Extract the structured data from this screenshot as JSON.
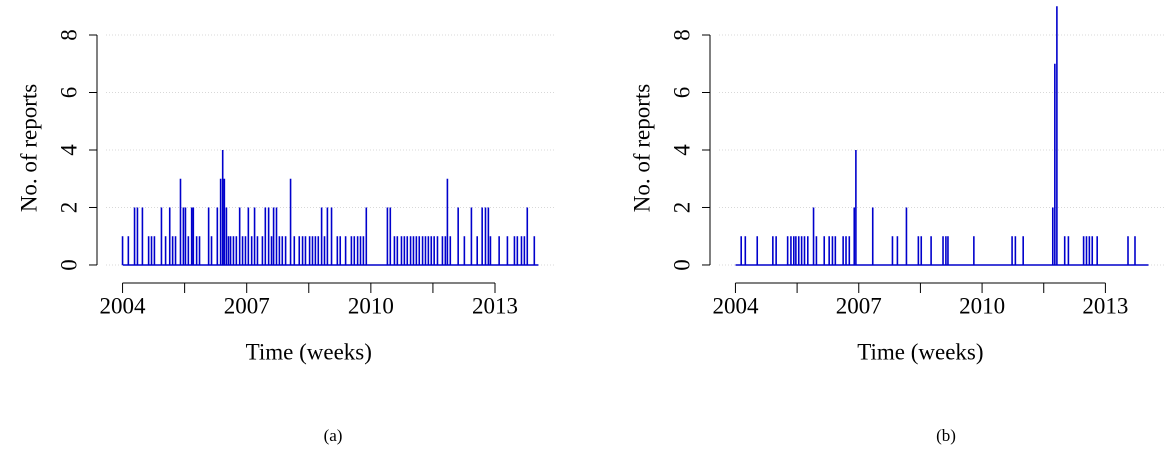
{
  "chart_data": [
    {
      "type": "spike",
      "caption": "(a)",
      "xlabel": "Time (weeks)",
      "ylabel": "No. of reports",
      "color": "#0000cc",
      "grid": true,
      "xlim": [
        2003.6,
        2014.45
      ],
      "xticks": [
        2004,
        2007,
        2010,
        2013
      ],
      "xminor_ticks": [
        2005.5,
        2008.5,
        2011.5
      ],
      "ylim": [
        -0.3,
        9.2
      ],
      "yticks": [
        0,
        2,
        4,
        6,
        8
      ],
      "x": [
        2004.0,
        2004.14,
        2004.29,
        2004.36,
        2004.48,
        2004.63,
        2004.7,
        2004.77,
        2004.94,
        2005.04,
        2005.14,
        2005.21,
        2005.28,
        2005.4,
        2005.47,
        2005.52,
        2005.59,
        2005.67,
        2005.71,
        2005.79,
        2005.86,
        2006.08,
        2006.15,
        2006.29,
        2006.37,
        2006.42,
        2006.46,
        2006.51,
        2006.56,
        2006.61,
        2006.68,
        2006.75,
        2006.83,
        2006.9,
        2006.97,
        2007.04,
        2007.12,
        2007.19,
        2007.26,
        2007.38,
        2007.45,
        2007.53,
        2007.6,
        2007.65,
        2007.72,
        2007.79,
        2007.86,
        2007.94,
        2008.06,
        2008.15,
        2008.27,
        2008.35,
        2008.42,
        2008.52,
        2008.59,
        2008.66,
        2008.73,
        2008.81,
        2008.88,
        2008.95,
        2009.05,
        2009.19,
        2009.26,
        2009.39,
        2009.53,
        2009.6,
        2009.68,
        2009.75,
        2009.82,
        2009.89,
        2010.4,
        2010.47,
        2010.57,
        2010.64,
        2010.74,
        2010.81,
        2010.88,
        2010.96,
        2011.03,
        2011.1,
        2011.17,
        2011.25,
        2011.32,
        2011.39,
        2011.46,
        2011.53,
        2011.61,
        2011.73,
        2011.8,
        2011.85,
        2011.92,
        2012.11,
        2012.26,
        2012.43,
        2012.57,
        2012.69,
        2012.77,
        2012.84,
        2012.89,
        2013.1,
        2013.3,
        2013.47,
        2013.54,
        2013.64,
        2013.71,
        2013.78,
        2013.95
      ],
      "values": [
        1,
        1,
        2,
        2,
        2,
        1,
        1,
        1,
        2,
        1,
        2,
        1,
        1,
        3,
        2,
        2,
        1,
        2,
        2,
        1,
        1,
        2,
        1,
        2,
        3,
        4,
        3,
        2,
        1,
        1,
        1,
        1,
        2,
        1,
        1,
        2,
        1,
        2,
        1,
        1,
        2,
        2,
        1,
        2,
        2,
        1,
        1,
        1,
        3,
        1,
        1,
        1,
        1,
        1,
        1,
        1,
        1,
        2,
        1,
        2,
        2,
        1,
        1,
        1,
        1,
        1,
        1,
        1,
        1,
        2,
        2,
        2,
        1,
        1,
        1,
        1,
        1,
        1,
        1,
        1,
        1,
        1,
        1,
        1,
        1,
        1,
        1,
        1,
        1,
        3,
        1,
        2,
        1,
        2,
        1,
        2,
        2,
        2,
        1,
        1,
        1,
        1,
        1,
        1,
        1,
        2,
        1
      ]
    },
    {
      "type": "spike",
      "caption": "(b)",
      "xlabel": "Time (weeks)",
      "ylabel": "No. of reports",
      "color": "#0000cc",
      "grid": true,
      "xlim": [
        2003.6,
        2014.45
      ],
      "xticks": [
        2004,
        2007,
        2010,
        2013
      ],
      "xminor_ticks": [
        2005.5,
        2008.5,
        2011.5
      ],
      "ylim": [
        -0.3,
        9.2
      ],
      "yticks": [
        0,
        2,
        4,
        6,
        8
      ],
      "x": [
        2004.14,
        2004.24,
        2004.53,
        2004.91,
        2004.99,
        2005.27,
        2005.35,
        2005.42,
        2005.47,
        2005.54,
        2005.61,
        2005.68,
        2005.76,
        2005.9,
        2005.97,
        2006.16,
        2006.28,
        2006.36,
        2006.43,
        2006.62,
        2006.69,
        2006.77,
        2006.89,
        2006.93,
        2007.34,
        2007.82,
        2007.94,
        2008.16,
        2008.45,
        2008.52,
        2008.76,
        2009.05,
        2009.12,
        2009.17,
        2009.8,
        2010.73,
        2010.81,
        2011.0,
        2011.72,
        2011.77,
        2011.82,
        2012.01,
        2012.1,
        2012.47,
        2012.54,
        2012.61,
        2012.68,
        2012.8,
        2013.55,
        2013.72
      ],
      "values": [
        1,
        1,
        1,
        1,
        1,
        1,
        1,
        1,
        1,
        1,
        1,
        1,
        1,
        2,
        1,
        1,
        1,
        1,
        1,
        1,
        1,
        1,
        2,
        4,
        2,
        1,
        1,
        2,
        1,
        1,
        1,
        1,
        1,
        1,
        1,
        1,
        1,
        1,
        2,
        7,
        9,
        1,
        1,
        1,
        1,
        1,
        1,
        1,
        1,
        1
      ]
    }
  ]
}
